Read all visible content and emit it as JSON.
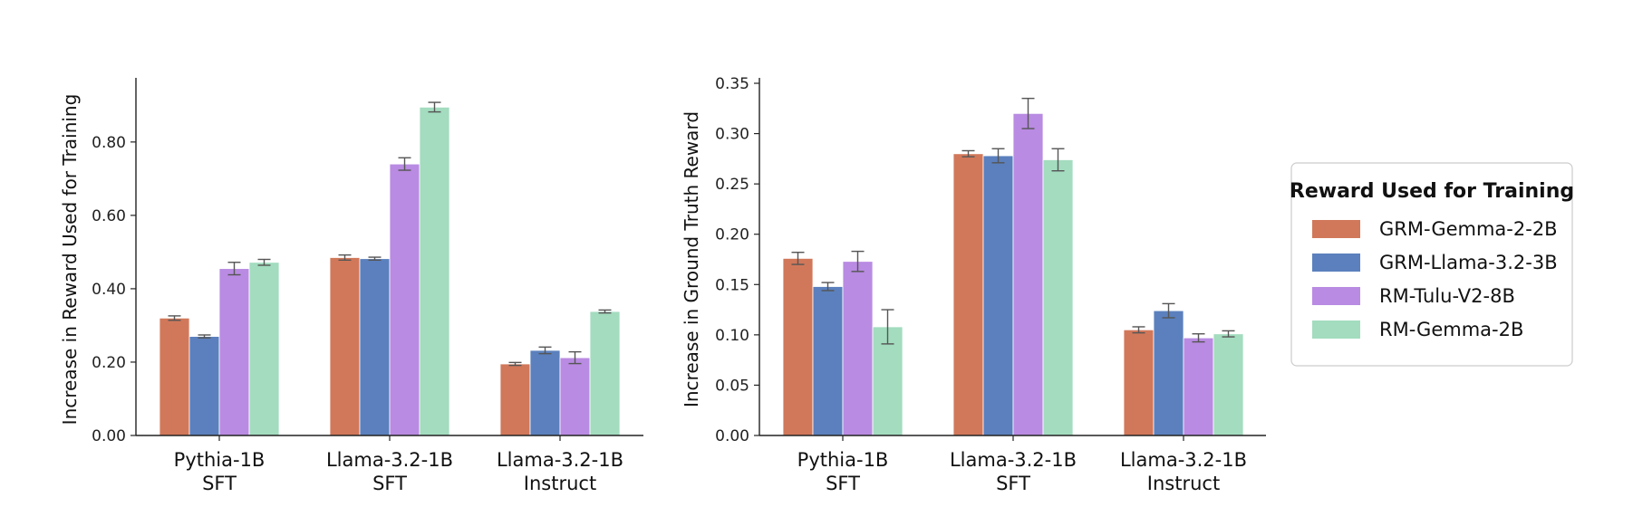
{
  "chart_data": [
    {
      "type": "bar",
      "title": "",
      "xlabel": "",
      "ylabel": "Increase in Reward Used for Training",
      "ylim": [
        0,
        0.96
      ],
      "yticks": [
        "0.00",
        "0.20",
        "0.40",
        "0.60",
        "0.80"
      ],
      "ytick_values": [
        0,
        0.2,
        0.4,
        0.6,
        0.8
      ],
      "categories": [
        [
          "Pythia-1B",
          "SFT"
        ],
        [
          "Llama-3.2-1B",
          "SFT"
        ],
        [
          "Llama-3.2-1B",
          "Instruct"
        ]
      ],
      "series": [
        {
          "name": "GRM-Gemma-2-2B",
          "color": "#d1785a",
          "values": [
            0.32,
            0.485,
            0.195
          ],
          "errors": [
            0.006,
            0.007,
            0.004
          ]
        },
        {
          "name": "GRM-Llama-3.2-3B",
          "color": "#5b80bd",
          "values": [
            0.27,
            0.482,
            0.232
          ],
          "errors": [
            0.004,
            0.004,
            0.009
          ]
        },
        {
          "name": "RM-Tulu-V2-8B",
          "color": "#b98be2",
          "values": [
            0.455,
            0.74,
            0.212
          ],
          "errors": [
            0.017,
            0.017,
            0.016
          ]
        },
        {
          "name": "RM-Gemma-2B",
          "color": "#a3dcbf",
          "values": [
            0.472,
            0.895,
            0.338
          ],
          "errors": [
            0.008,
            0.013,
            0.004
          ]
        }
      ],
      "grid": false
    },
    {
      "type": "bar",
      "title": "",
      "xlabel": "",
      "ylabel": "Increase in Ground Truth Reward",
      "ylim": [
        0,
        0.35
      ],
      "yticks": [
        "0.00",
        "0.05",
        "0.10",
        "0.15",
        "0.20",
        "0.25",
        "0.30",
        "0.35"
      ],
      "ytick_values": [
        0,
        0.05,
        0.1,
        0.15,
        0.2,
        0.25,
        0.3,
        0.35
      ],
      "categories": [
        [
          "Pythia-1B",
          "SFT"
        ],
        [
          "Llama-3.2-1B",
          "SFT"
        ],
        [
          "Llama-3.2-1B",
          "Instruct"
        ]
      ],
      "series": [
        {
          "name": "GRM-Gemma-2-2B",
          "color": "#d1785a",
          "values": [
            0.176,
            0.28,
            0.105
          ],
          "errors": [
            0.006,
            0.003,
            0.003
          ]
        },
        {
          "name": "GRM-Llama-3.2-3B",
          "color": "#5b80bd",
          "values": [
            0.148,
            0.278,
            0.124
          ],
          "errors": [
            0.004,
            0.007,
            0.007
          ]
        },
        {
          "name": "RM-Tulu-V2-8B",
          "color": "#b98be2",
          "values": [
            0.173,
            0.32,
            0.097
          ],
          "errors": [
            0.01,
            0.015,
            0.004
          ]
        },
        {
          "name": "RM-Gemma-2B",
          "color": "#a3dcbf",
          "values": [
            0.108,
            0.274,
            0.101
          ],
          "errors": [
            0.017,
            0.011,
            0.003
          ]
        }
      ],
      "grid": false
    }
  ],
  "legend": {
    "title": "Reward Used for Training",
    "placement": "right",
    "items": [
      {
        "label": "GRM-Gemma-2-2B",
        "color": "#d1785a"
      },
      {
        "label": "GRM-Llama-3.2-3B",
        "color": "#5b80bd"
      },
      {
        "label": "RM-Tulu-V2-8B",
        "color": "#b98be2"
      },
      {
        "label": "RM-Gemma-2B",
        "color": "#a3dcbf"
      }
    ]
  }
}
